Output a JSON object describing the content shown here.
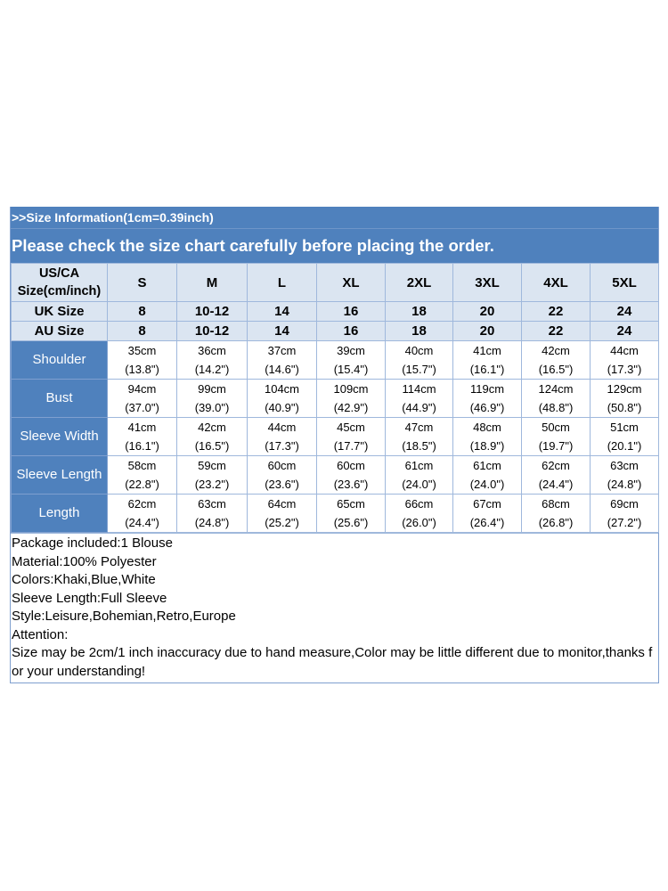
{
  "header": {
    "info": ">>Size Information(1cm=0.39inch)",
    "notice": "Please check the size chart carefully before placing the order."
  },
  "table": {
    "corner": {
      "line1": "US/CA",
      "line2": "Size(cm/inch)"
    },
    "sizes": [
      "S",
      "M",
      "L",
      "XL",
      "2XL",
      "3XL",
      "4XL",
      "5XL"
    ],
    "uk": {
      "label": "UK Size",
      "values": [
        "8",
        "10-12",
        "14",
        "16",
        "18",
        "20",
        "22",
        "24"
      ]
    },
    "au": {
      "label": "AU Size",
      "values": [
        "8",
        "10-12",
        "14",
        "16",
        "18",
        "20",
        "22",
        "24"
      ]
    },
    "rows": [
      {
        "label": "Shoulder",
        "cm": [
          "35cm",
          "36cm",
          "37cm",
          "39cm",
          "40cm",
          "41cm",
          "42cm",
          "44cm"
        ],
        "inch": [
          "(13.8\")",
          "(14.2\")",
          "(14.6\")",
          "(15.4\")",
          "(15.7\")",
          "(16.1\")",
          "(16.5\")",
          "(17.3\")"
        ]
      },
      {
        "label": "Bust",
        "cm": [
          "94cm",
          "99cm",
          "104cm",
          "109cm",
          "114cm",
          "119cm",
          "124cm",
          "129cm"
        ],
        "inch": [
          "(37.0\")",
          "(39.0\")",
          "(40.9\")",
          "(42.9\")",
          "(44.9\")",
          "(46.9\")",
          "(48.8\")",
          "(50.8\")"
        ]
      },
      {
        "label": "Sleeve Width",
        "cm": [
          "41cm",
          "42cm",
          "44cm",
          "45cm",
          "47cm",
          "48cm",
          "50cm",
          "51cm"
        ],
        "inch": [
          "(16.1\")",
          "(16.5\")",
          "(17.3\")",
          "(17.7\")",
          "(18.5\")",
          "(18.9\")",
          "(19.7\")",
          "(20.1\")"
        ]
      },
      {
        "label": "Sleeve Length",
        "cm": [
          "58cm",
          "59cm",
          "60cm",
          "60cm",
          "61cm",
          "61cm",
          "62cm",
          "63cm"
        ],
        "inch": [
          "(22.8\")",
          "(23.2\")",
          "(23.6\")",
          "(23.6\")",
          "(24.0\")",
          "(24.0\")",
          "(24.4\")",
          "(24.8\")"
        ]
      },
      {
        "label": "Length",
        "cm": [
          "62cm",
          "63cm",
          "64cm",
          "65cm",
          "66cm",
          "67cm",
          "68cm",
          "69cm"
        ],
        "inch": [
          "(24.4\")",
          "(24.8\")",
          "(25.2\")",
          "(25.6\")",
          "(26.0\")",
          "(26.4\")",
          "(26.8\")",
          "(27.2\")"
        ]
      }
    ]
  },
  "notes": [
    "Package included:1 Blouse",
    "Material:100% Polyester",
    "Colors:Khaki,Blue,White",
    "Sleeve Length:Full Sleeve",
    "Style:Leisure,Bohemian,Retro,Europe",
    "Attention:",
    "Size may be 2cm/1 inch inaccuracy due to hand measure,Color may be little different due to monitor,thanks for your understanding!"
  ]
}
